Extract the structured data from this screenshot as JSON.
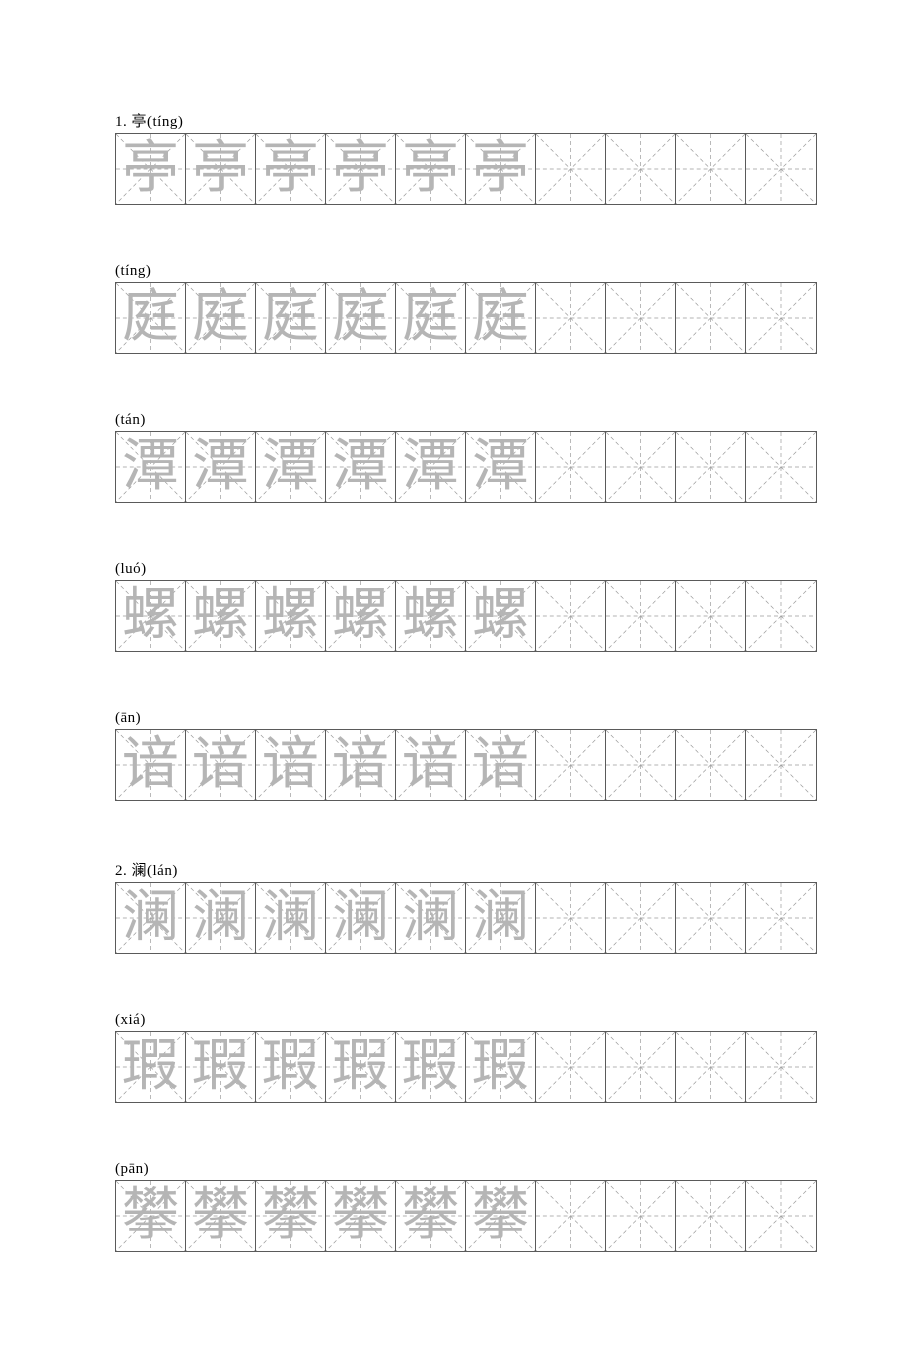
{
  "page": {
    "background_color": "#ffffff",
    "grid_border_color": "#5a5a5a",
    "guide_line_color": "#9a9a9a",
    "guide_dash": "4,3",
    "char_color": "#b5b5b5",
    "label_color": "#000000",
    "label_fontsize": 15,
    "char_fontsize": 57,
    "cell_size": 70,
    "cells_per_row": 10,
    "traced_cells": 6
  },
  "rows": [
    {
      "label": "1.   亭(tíng)",
      "char": "亭"
    },
    {
      "label": "(tíng)",
      "char": "庭"
    },
    {
      "label": "(tán)",
      "char": "潭"
    },
    {
      "label": "(luó)",
      "char": "螺"
    },
    {
      "label": "(ān)",
      "char": "谙"
    },
    {
      "label": "2.   澜(lán)",
      "char": "澜"
    },
    {
      "label": "(xiá)",
      "char": "瑕"
    },
    {
      "label": "(pān)",
      "char": "攀"
    }
  ]
}
